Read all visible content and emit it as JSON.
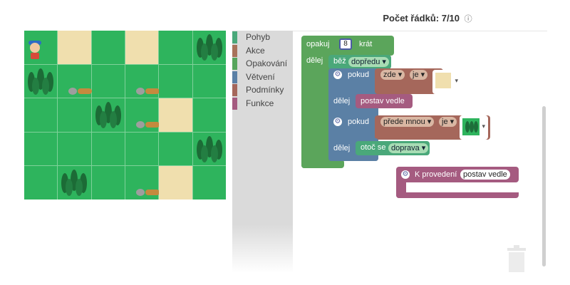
{
  "header": {
    "lines_label": "Počet řádků: 7/10",
    "info_icon": "ⓘ"
  },
  "grid": {
    "rows": [
      [
        "robot-grass",
        "sand",
        "grass",
        "sand",
        "grass",
        "trees"
      ],
      [
        "trees",
        "grass-rock-log",
        "grass",
        "grass-rock-log",
        "grass",
        "grass"
      ],
      [
        "grass",
        "grass",
        "trees",
        "grass-rock-log",
        "sand",
        "grass"
      ],
      [
        "grass",
        "grass",
        "grass",
        "grass",
        "grass",
        "trees"
      ],
      [
        "grass",
        "trees",
        "grass",
        "grass-rock-log",
        "sand",
        "grass"
      ]
    ]
  },
  "toolbox": {
    "categories": [
      {
        "label": "Pohyb",
        "color": "#4aa87a"
      },
      {
        "label": "Akce",
        "color": "#a8725a"
      },
      {
        "label": "Opakování",
        "color": "#57a55c"
      },
      {
        "label": "Větvení",
        "color": "#5b80a5"
      },
      {
        "label": "Podmínky",
        "color": "#a5675b"
      },
      {
        "label": "Funkce",
        "color": "#a55b80"
      }
    ]
  },
  "program": {
    "repeat_label": "opakuj",
    "repeat_count": "8",
    "times_label": "krát",
    "do_label": "dělej",
    "move_label": "běž",
    "move_dir": "dopředu ▾",
    "if1_label": "pokud",
    "if1_what": "zde ▾",
    "if1_is": "je ▾",
    "if1_do": "dělej",
    "build_label": "postav vedle",
    "if2_label": "pokud",
    "if2_what": "přede mnou ▾",
    "if2_is": "je ▾",
    "if2_do": "dělej",
    "turn_label": "otoč se",
    "turn_dir": "doprava ▾",
    "func_label": "K provedení",
    "func_name": "postav vedle",
    "dropdown_arrow": "▾",
    "gear_glyph": "⚙"
  },
  "colors": {
    "loop": "#5ba55b",
    "move": "#4aa87a",
    "if": "#5b80a5",
    "cond": "#a5675b",
    "action": "#a55b80",
    "func": "#a55b80"
  }
}
